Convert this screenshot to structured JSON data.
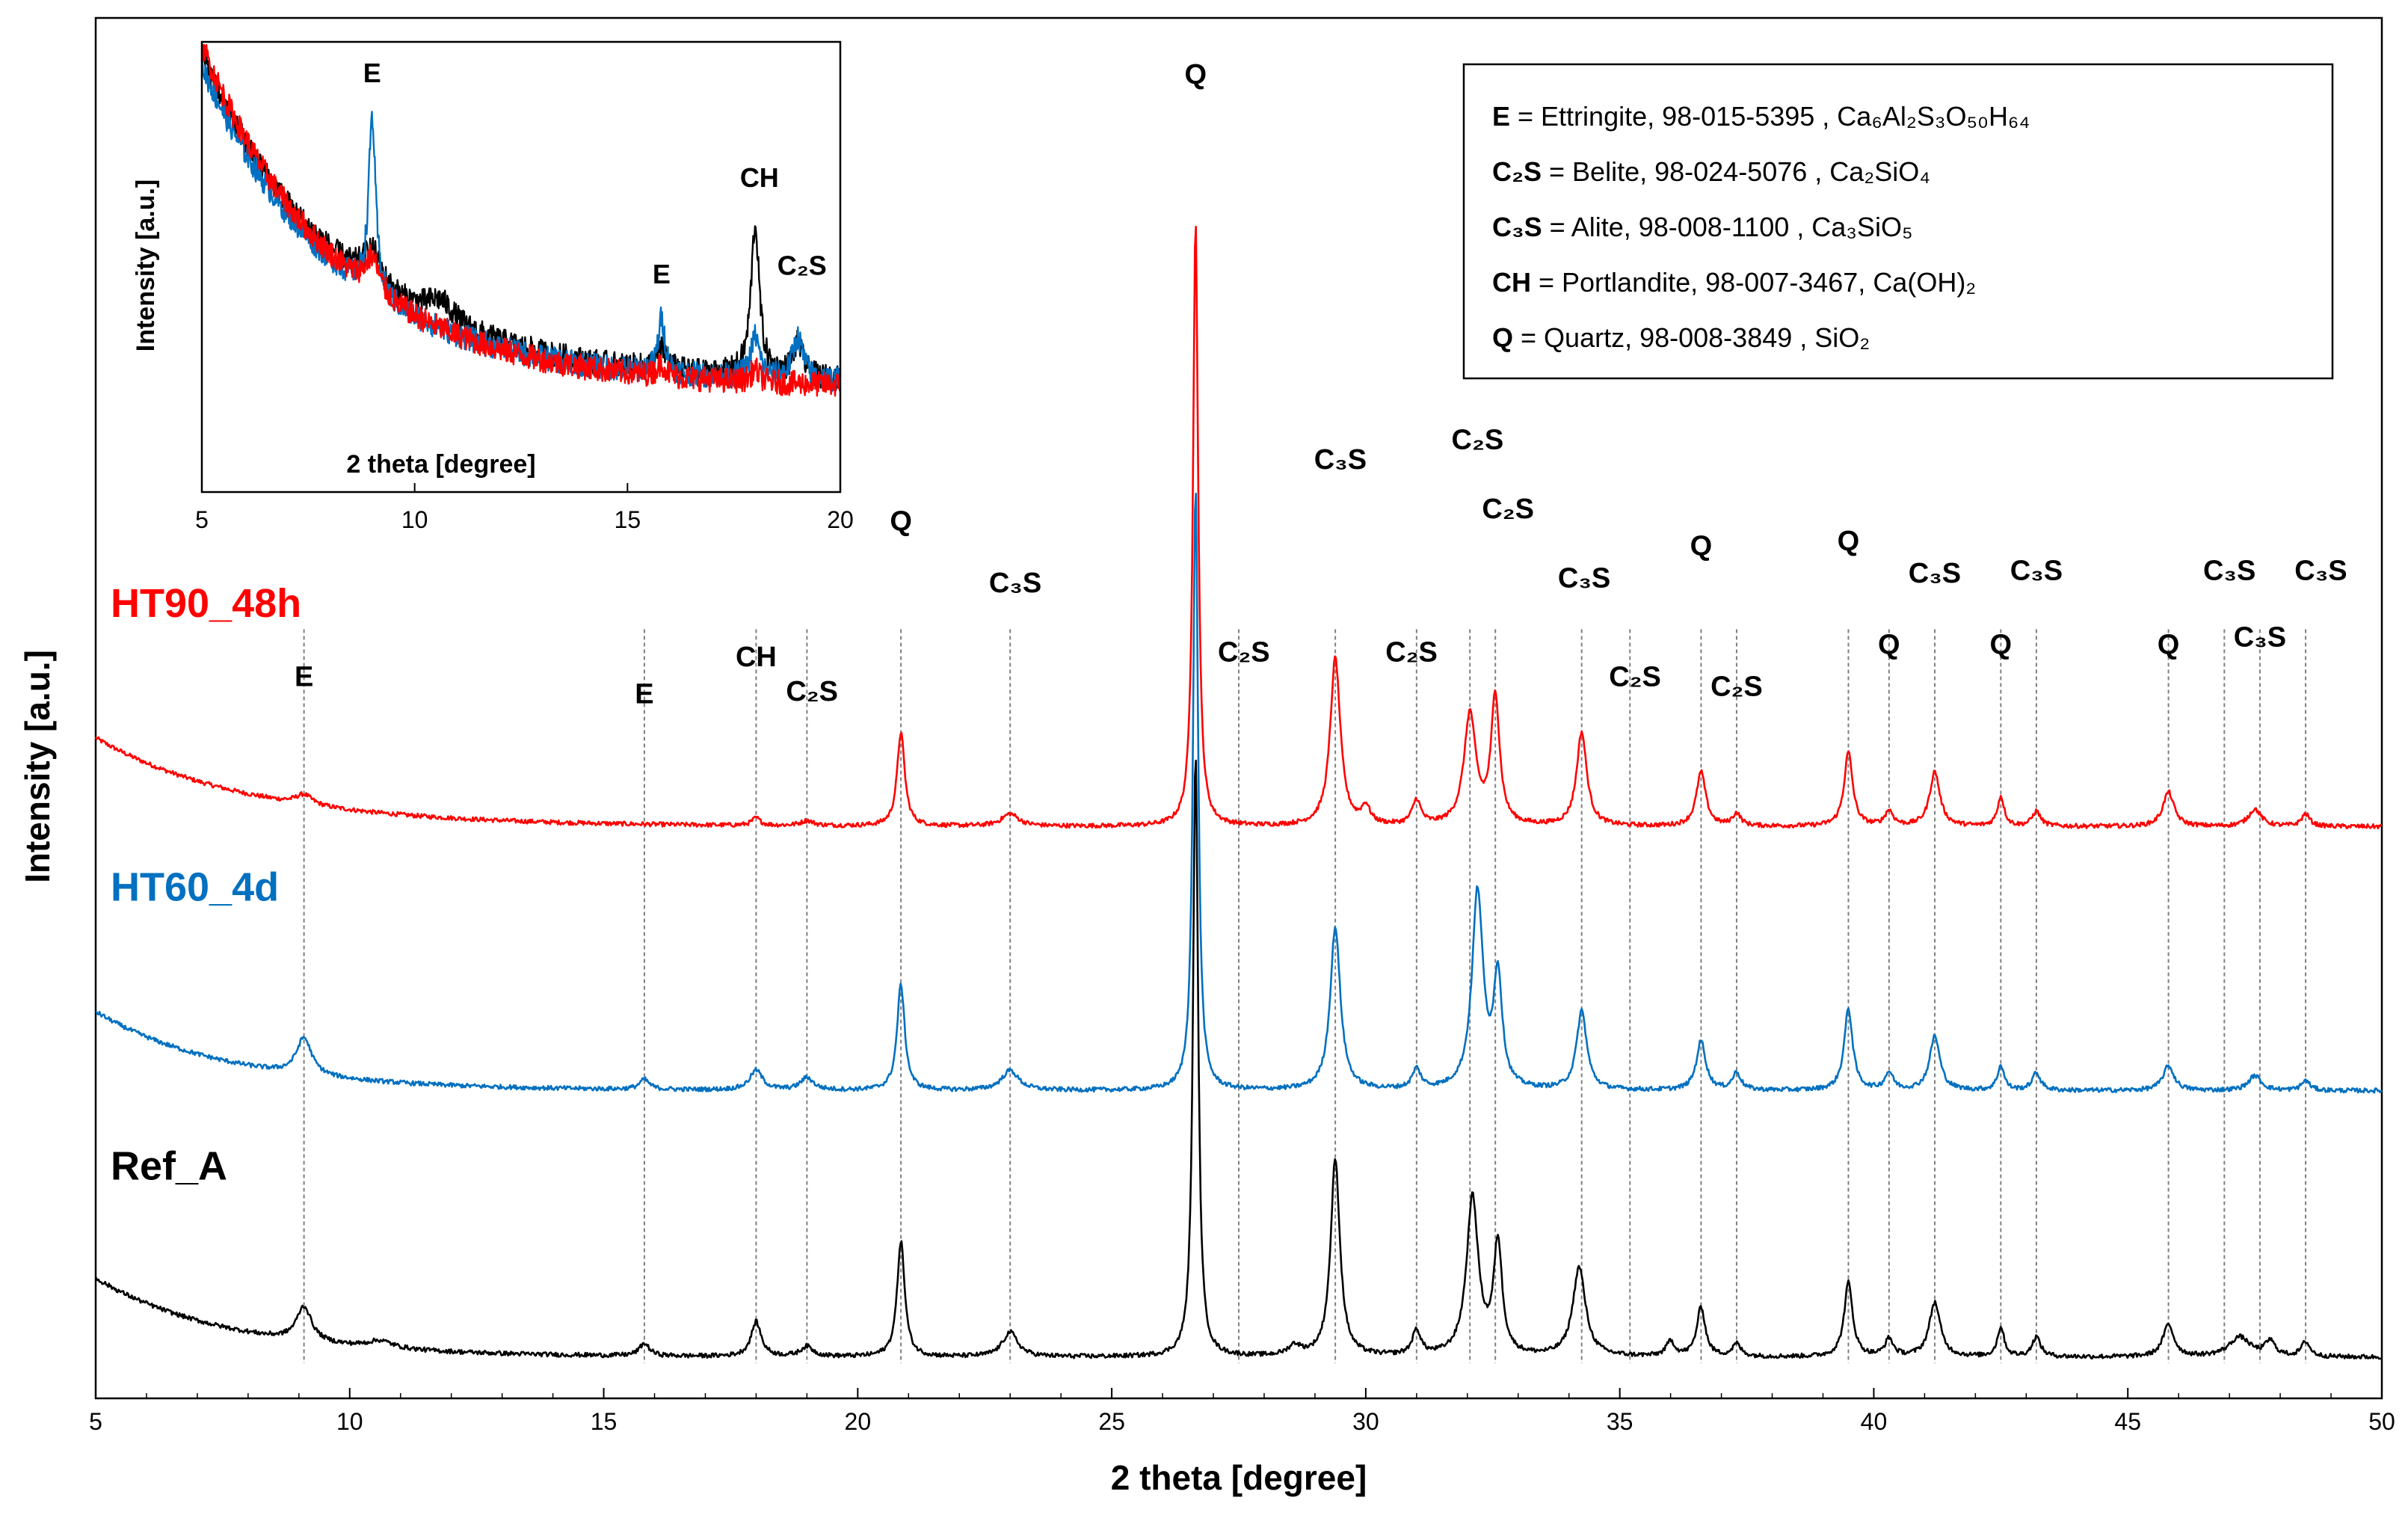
{
  "chart_data": {
    "type": "line",
    "xlabel": "2 theta [degree]",
    "ylabel": "Intensity [a.u.]",
    "xlim": [
      5,
      50
    ],
    "xticks": [
      5,
      10,
      15,
      20,
      25,
      30,
      35,
      40,
      45,
      50
    ],
    "grid": false,
    "series": [
      {
        "name": "HT90_48h",
        "color": "#ff0000",
        "offset": 2.15,
        "bg": [
          0.36,
          0.06,
          3.0
        ],
        "peaks": [
          [
            9.1,
            0.04,
            0.2
          ],
          [
            18.0,
            0.03,
            0.1
          ],
          [
            19.0,
            0.02,
            0.15
          ],
          [
            20.85,
            0.38,
            0.09
          ],
          [
            23.0,
            0.05,
            0.2
          ],
          [
            26.65,
            2.45,
            0.06
          ],
          [
            29.4,
            0.68,
            0.12
          ],
          [
            30.0,
            0.07,
            0.1
          ],
          [
            31.0,
            0.1,
            0.1
          ],
          [
            32.05,
            0.45,
            0.14
          ],
          [
            32.55,
            0.52,
            0.1
          ],
          [
            34.25,
            0.38,
            0.12
          ],
          [
            36.6,
            0.22,
            0.11
          ],
          [
            37.3,
            0.05,
            0.1
          ],
          [
            39.5,
            0.3,
            0.1
          ],
          [
            40.3,
            0.06,
            0.1
          ],
          [
            41.2,
            0.22,
            0.12
          ],
          [
            42.5,
            0.12,
            0.08
          ],
          [
            43.2,
            0.06,
            0.1
          ],
          [
            45.8,
            0.14,
            0.13
          ],
          [
            47.5,
            0.07,
            0.15
          ],
          [
            48.5,
            0.05,
            0.1
          ]
        ]
      },
      {
        "name": "HT60_4d",
        "color": "#0070c0",
        "offset": 1.08,
        "bg": [
          0.32,
          0.06,
          2.6
        ],
        "peaks": [
          [
            9.1,
            0.15,
            0.18
          ],
          [
            15.8,
            0.04,
            0.12
          ],
          [
            18.0,
            0.08,
            0.15
          ],
          [
            19.0,
            0.05,
            0.15
          ],
          [
            20.85,
            0.43,
            0.09
          ],
          [
            23.0,
            0.08,
            0.2
          ],
          [
            26.65,
            2.45,
            0.06
          ],
          [
            29.4,
            0.66,
            0.12
          ],
          [
            31.0,
            0.08,
            0.1
          ],
          [
            32.2,
            0.8,
            0.13
          ],
          [
            32.6,
            0.45,
            0.1
          ],
          [
            34.25,
            0.32,
            0.12
          ],
          [
            36.6,
            0.2,
            0.11
          ],
          [
            37.3,
            0.07,
            0.1
          ],
          [
            39.5,
            0.33,
            0.1
          ],
          [
            40.3,
            0.07,
            0.1
          ],
          [
            41.2,
            0.22,
            0.12
          ],
          [
            42.5,
            0.1,
            0.08
          ],
          [
            43.2,
            0.07,
            0.1
          ],
          [
            45.8,
            0.1,
            0.13
          ],
          [
            47.5,
            0.06,
            0.15
          ],
          [
            48.5,
            0.04,
            0.1
          ]
        ]
      },
      {
        "name": "Ref_A",
        "color": "#000000",
        "offset": 0.0,
        "bg": [
          0.32,
          0.06,
          2.6
        ],
        "peaks": [
          [
            9.1,
            0.14,
            0.18
          ],
          [
            10.6,
            0.03,
            0.3
          ],
          [
            15.8,
            0.05,
            0.12
          ],
          [
            18.0,
            0.14,
            0.12
          ],
          [
            19.0,
            0.04,
            0.15
          ],
          [
            20.85,
            0.47,
            0.09
          ],
          [
            23.0,
            0.1,
            0.18
          ],
          [
            26.65,
            2.45,
            0.06
          ],
          [
            28.6,
            0.04,
            0.15
          ],
          [
            29.4,
            0.8,
            0.11
          ],
          [
            31.0,
            0.1,
            0.1
          ],
          [
            32.1,
            0.64,
            0.14
          ],
          [
            32.6,
            0.45,
            0.1
          ],
          [
            34.2,
            0.36,
            0.15
          ],
          [
            36.0,
            0.06,
            0.1
          ],
          [
            36.6,
            0.2,
            0.1
          ],
          [
            37.3,
            0.05,
            0.1
          ],
          [
            39.5,
            0.3,
            0.1
          ],
          [
            40.3,
            0.07,
            0.1
          ],
          [
            41.2,
            0.22,
            0.13
          ],
          [
            42.5,
            0.12,
            0.08
          ],
          [
            43.2,
            0.08,
            0.1
          ],
          [
            45.8,
            0.13,
            0.13
          ],
          [
            47.2,
            0.08,
            0.25
          ],
          [
            47.8,
            0.06,
            0.12
          ],
          [
            48.5,
            0.06,
            0.1
          ]
        ]
      }
    ],
    "series_labels": [
      {
        "text": "HT90_48h",
        "color": "#ff0000"
      },
      {
        "text": "HT60_4d",
        "color": "#0070c0"
      },
      {
        "text": "Ref_A",
        "color": "#000000"
      }
    ],
    "reference_lines": [
      9.1,
      15.8,
      18.0,
      19.0,
      20.85,
      23.0,
      27.5,
      29.4,
      31.0,
      32.05,
      32.55,
      34.25,
      35.2,
      36.6,
      37.3,
      39.5,
      40.3,
      41.2,
      42.5,
      43.2,
      45.8,
      46.9,
      47.6,
      48.5
    ],
    "peak_labels": [
      {
        "text": "E",
        "x": 9.1,
        "level": 2.72
      },
      {
        "text": "E",
        "x": 15.8,
        "level": 2.65
      },
      {
        "text": "CH",
        "x": 18.0,
        "level": 2.8
      },
      {
        "text": "C₂S",
        "x": 19.1,
        "level": 2.66
      },
      {
        "text": "Q",
        "x": 20.85,
        "level": 3.35
      },
      {
        "text": "C₃S",
        "x": 23.1,
        "level": 3.1
      },
      {
        "text": "Q",
        "x": 26.65,
        "level": 5.16
      },
      {
        "text": "C₂S",
        "x": 27.6,
        "level": 2.82
      },
      {
        "text": "C₃S",
        "x": 29.5,
        "level": 3.6
      },
      {
        "text": "C₂S",
        "x": 30.9,
        "level": 2.82
      },
      {
        "text": "C₂S",
        "x": 32.2,
        "level": 3.68
      },
      {
        "text": "C₂S",
        "x": 32.8,
        "level": 3.4
      },
      {
        "text": "C₃S",
        "x": 34.3,
        "level": 3.12
      },
      {
        "text": "C₂S",
        "x": 35.3,
        "level": 2.72
      },
      {
        "text": "Q",
        "x": 36.6,
        "level": 3.25
      },
      {
        "text": "C₂S",
        "x": 37.3,
        "level": 2.68
      },
      {
        "text": "Q",
        "x": 39.5,
        "level": 3.27
      },
      {
        "text": "C₃S",
        "x": 41.2,
        "level": 3.14
      },
      {
        "text": "Q",
        "x": 40.3,
        "level": 2.85
      },
      {
        "text": "C₃S",
        "x": 43.2,
        "level": 3.15
      },
      {
        "text": "Q",
        "x": 42.5,
        "level": 2.85
      },
      {
        "text": "C₃S",
        "x": 47.0,
        "level": 3.15
      },
      {
        "text": "Q",
        "x": 45.8,
        "level": 2.85
      },
      {
        "text": "C₃S",
        "x": 47.6,
        "level": 2.88
      },
      {
        "text": "C₃S",
        "x": 48.8,
        "level": 3.15
      }
    ],
    "legend": {
      "placement": "top-right",
      "entries": [
        {
          "key": "E",
          "desc": " = Ettringite, 98-015-5395 , ",
          "formula": "Ca₆Al₂S₃O₅₀H₆₄"
        },
        {
          "key": "C₂S",
          "desc": " = Belite, 98-024-5076 , ",
          "formula": "Ca₂SiO₄"
        },
        {
          "key": "C₃S",
          "desc": " = Alite, 98-008-1100 , ",
          "formula": "Ca₃SiO₅"
        },
        {
          "key": "CH",
          "desc": " = Portlandite, 98-007-3467, ",
          "formula": "Ca(OH)₂"
        },
        {
          "key": "Q",
          "desc": " = Quartz, 98-008-3849 , ",
          "formula": "SiO₂"
        }
      ]
    },
    "inset": {
      "placement": "top-left",
      "xlabel": "2 theta [degree]",
      "ylabel": "Intensity [a.u.]",
      "xlim": [
        5,
        20
      ],
      "xticks": [
        5,
        10,
        15,
        20
      ],
      "series": [
        {
          "name": "Ref_A",
          "color": "#000000",
          "bg": [
            0.08,
            0.78,
            3.4
          ],
          "peaks": [
            [
              9.0,
              0.08,
              0.25
            ],
            [
              10.6,
              0.05,
              0.4
            ],
            [
              15.8,
              0.05,
              0.15
            ],
            [
              18.0,
              0.36,
              0.12
            ],
            [
              19.0,
              0.08,
              0.15
            ]
          ]
        },
        {
          "name": "HT60_4d",
          "color": "#0070c0",
          "bg": [
            0.08,
            0.76,
            3.2
          ],
          "peaks": [
            [
              9.0,
              0.42,
              0.1
            ],
            [
              15.8,
              0.13,
              0.1
            ],
            [
              18.0,
              0.1,
              0.12
            ],
            [
              19.0,
              0.1,
              0.15
            ]
          ]
        },
        {
          "name": "HT90_48h",
          "color": "#ff0000",
          "bg": [
            0.07,
            0.82,
            3.2
          ],
          "peaks": [
            [
              9.0,
              0.08,
              0.2
            ],
            [
              15.8,
              0.03,
              0.12
            ],
            [
              18.0,
              0.03,
              0.12
            ]
          ]
        }
      ],
      "peak_labels": [
        {
          "text": "E",
          "x": 9.0,
          "level": 0.8
        },
        {
          "text": "E",
          "x": 15.8,
          "level": 0.32
        },
        {
          "text": "CH",
          "x": 18.1,
          "level": 0.55
        },
        {
          "text": "C₂S",
          "x": 19.1,
          "level": 0.34
        }
      ]
    }
  }
}
